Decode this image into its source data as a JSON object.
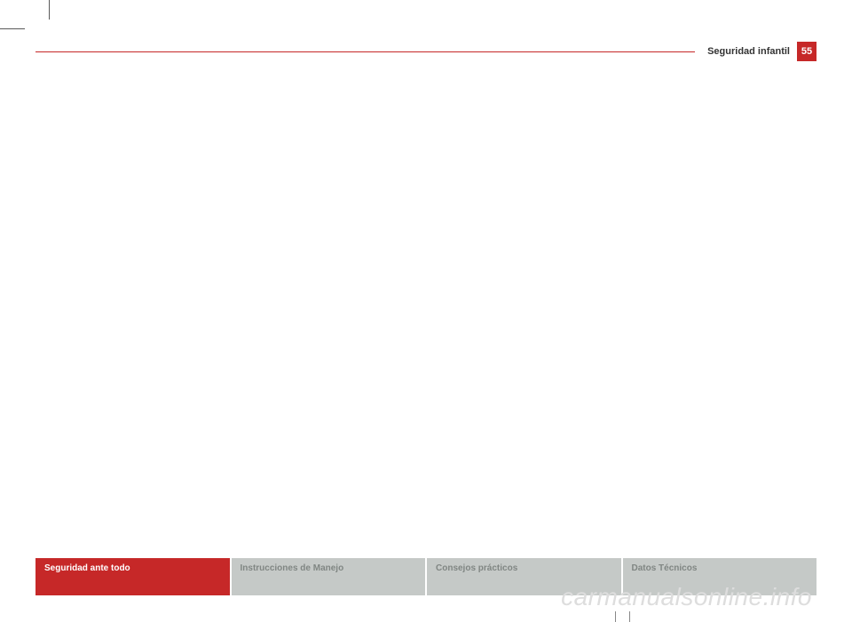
{
  "header": {
    "section_title": "Seguridad infantil",
    "page_number": "55"
  },
  "tabs": [
    {
      "label": "Seguridad ante todo",
      "active": true
    },
    {
      "label": "Instrucciones de Manejo",
      "active": false
    },
    {
      "label": "Consejos prácticos",
      "active": false
    },
    {
      "label": "Datos Técnicos",
      "active": false
    }
  ],
  "watermark": "carmanualsonline.info",
  "colors": {
    "accent": "#c62828",
    "inactive_tab_bg": "#c5c9c7",
    "inactive_tab_text": "#808683",
    "watermark": "#dddddd"
  }
}
